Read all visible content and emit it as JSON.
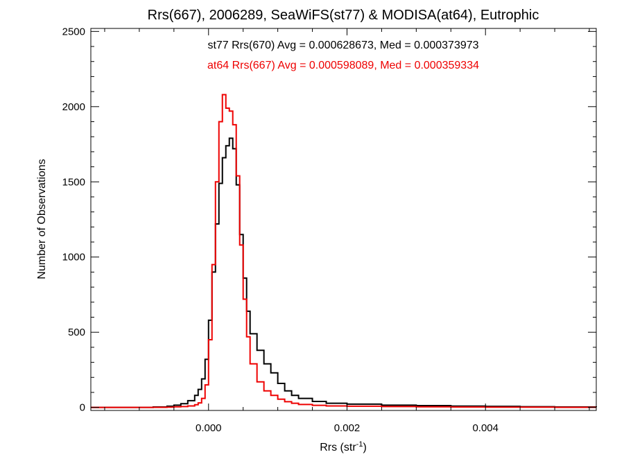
{
  "chart_data": {
    "type": "line",
    "title": "Rrs(667), 2006289, SeaWiFS(st77) & MODISA(at64), Eutrophic",
    "xlabel": "Rrs (str",
    "xlabel_sup": "-1",
    "xlabel_end": ")",
    "ylabel": "Number of Observations",
    "xlim": [
      -0.0017,
      0.0056
    ],
    "ylim": [
      -20,
      2520
    ],
    "xticks": [
      0.0,
      0.002,
      0.004
    ],
    "xtick_labels": [
      "0.000",
      "0.002",
      "0.004"
    ],
    "yticks": [
      0,
      500,
      1000,
      1500,
      2000,
      2500
    ],
    "ytick_labels": [
      "0",
      "500",
      "1000",
      "1500",
      "2000",
      "2500"
    ],
    "grid": false,
    "line_style": "step",
    "annotations": [
      {
        "text": "st77 Rrs(670) Avg = 0.000628673, Med = 0.000373973",
        "color": "#000000"
      },
      {
        "text": "at64 Rrs(667) Avg = 0.000598089, Med = 0.000359334",
        "color": "#ee0000"
      }
    ],
    "series": [
      {
        "color": "#000000",
        "x": [
          -0.0017,
          -0.001,
          -0.0008,
          -0.0006,
          -0.0005,
          -0.0004,
          -0.0003,
          -0.0002,
          -0.00015,
          -0.0001,
          -5e-05,
          0.0,
          5e-05,
          0.0001,
          0.00015,
          0.0002,
          0.00025,
          0.0003,
          0.00035,
          0.0004,
          0.00045,
          0.0005,
          0.00055,
          0.0006,
          0.0007,
          0.0008,
          0.0009,
          0.001,
          0.0011,
          0.0012,
          0.0013,
          0.0015,
          0.0017,
          0.002,
          0.0025,
          0.003,
          0.0035,
          0.004,
          0.0045,
          0.005,
          0.0056
        ],
        "y": [
          0,
          0,
          3,
          8,
          15,
          25,
          45,
          80,
          120,
          190,
          320,
          580,
          900,
          1220,
          1490,
          1660,
          1740,
          1790,
          1720,
          1480,
          1150,
          860,
          640,
          490,
          380,
          290,
          230,
          160,
          110,
          80,
          60,
          40,
          28,
          22,
          15,
          12,
          9,
          7,
          5,
          3,
          2
        ]
      },
      {
        "color": "#ee0000",
        "x": [
          -0.0017,
          -0.001,
          -0.0008,
          -0.0006,
          -0.0005,
          -0.0004,
          -0.0003,
          -0.0002,
          -0.00015,
          -0.0001,
          -5e-05,
          0.0,
          5e-05,
          0.0001,
          0.00015,
          0.0002,
          0.00025,
          0.0003,
          0.00035,
          0.0004,
          0.00045,
          0.0005,
          0.00055,
          0.0006,
          0.0007,
          0.0008,
          0.0009,
          0.001,
          0.0011,
          0.0012,
          0.0013,
          0.0015,
          0.0017,
          0.002,
          0.0025,
          0.003,
          0.0035,
          0.004,
          0.0045,
          0.005,
          0.0056
        ],
        "y": [
          0,
          0,
          1,
          2,
          4,
          6,
          10,
          18,
          30,
          60,
          150,
          450,
          950,
          1500,
          1900,
          2080,
          1990,
          1970,
          1880,
          1540,
          1080,
          720,
          470,
          290,
          170,
          110,
          80,
          55,
          38,
          28,
          20,
          14,
          10,
          8,
          6,
          4,
          3,
          2,
          2,
          1,
          1
        ]
      }
    ]
  }
}
